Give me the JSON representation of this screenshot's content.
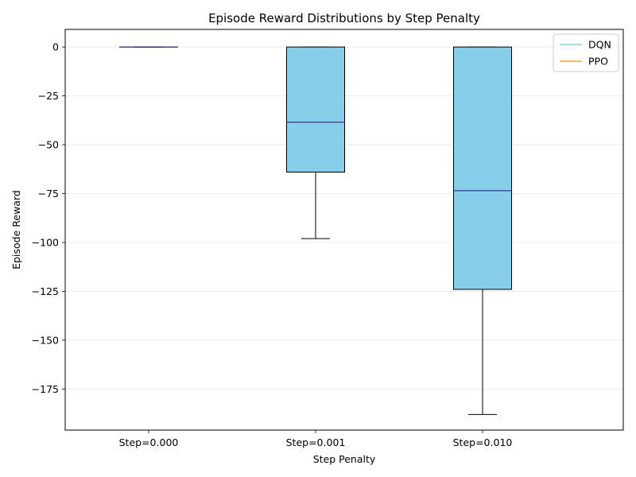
{
  "chart_data": {
    "type": "boxplot",
    "title": "Episode Reward Distributions by Step Penalty",
    "xlabel": "Step Penalty",
    "ylabel": "Episode Reward",
    "ylim": [
      -196,
      9
    ],
    "yticks": [
      0,
      -25,
      -50,
      -75,
      -100,
      -125,
      -150,
      -175
    ],
    "ytick_labels": [
      "0",
      "−25",
      "−50",
      "−75",
      "−100",
      "−125",
      "−150",
      "−175"
    ],
    "grid": true,
    "legend_position": "top-right",
    "categories": [
      "Step=0.000",
      "Step=0.001",
      "Step=0.010"
    ],
    "series": [
      {
        "name": "DQN",
        "color": "#87CEEB",
        "boxes": [
          {
            "whisker_low": 0,
            "q1": 0,
            "median": 0,
            "q3": 0,
            "whisker_high": 0
          },
          {
            "whisker_low": -98,
            "q1": -64,
            "median": -38.5,
            "q3": 0,
            "whisker_high": 0
          },
          {
            "whisker_low": -188,
            "q1": -124,
            "median": -73.5,
            "q3": 0,
            "whisker_high": 0
          }
        ]
      },
      {
        "name": "PPO",
        "color": "#FFA500",
        "boxes": []
      }
    ],
    "median_color": "#191970",
    "box_edge_color": "#000000"
  }
}
